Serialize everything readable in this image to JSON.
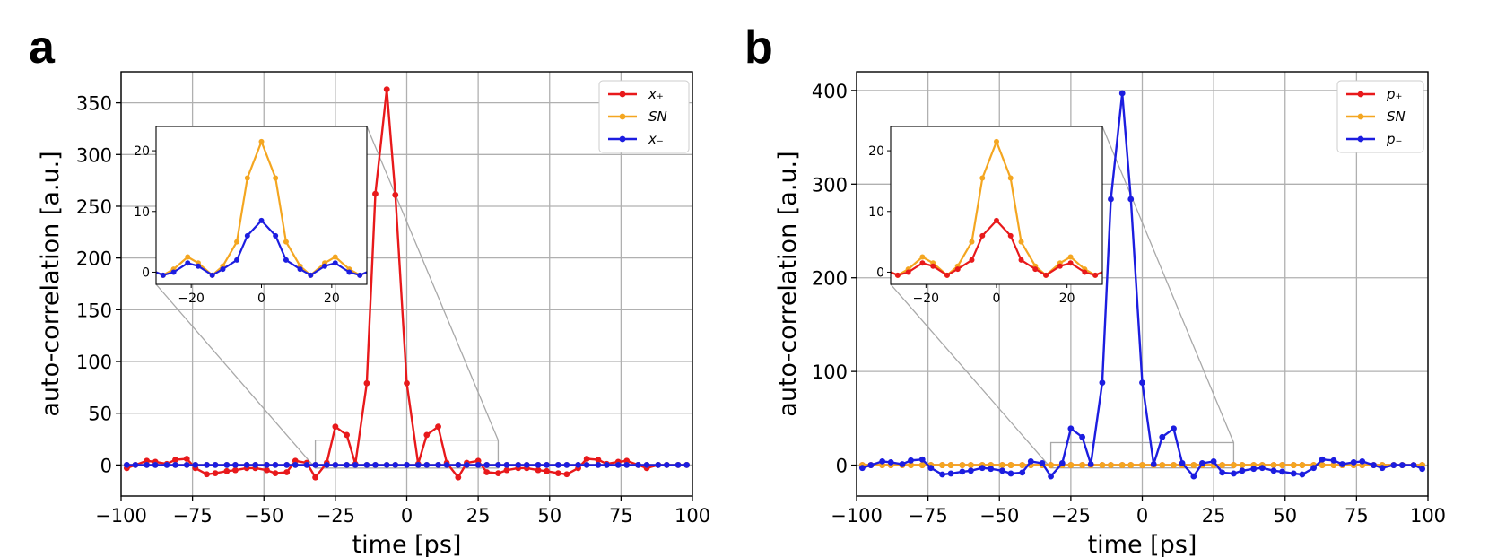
{
  "chart_data": [
    {
      "type": "line",
      "panel_label": "a",
      "xlabel": "time [ps]",
      "ylabel": "auto-correlation [a.u.]",
      "xlim": [
        -100,
        100
      ],
      "ylim": [
        -30,
        380
      ],
      "xticks": [
        -100,
        -75,
        -50,
        -25,
        0,
        25,
        50,
        75,
        100
      ],
      "xtick_labels": [
        "−100",
        "−75",
        "−50",
        "−25",
        "0",
        "25",
        "50",
        "75",
        "100"
      ],
      "yticks": [
        0,
        50,
        100,
        150,
        200,
        250,
        300,
        350
      ],
      "ytick_labels": [
        "0",
        "50",
        "100",
        "150",
        "200",
        "250",
        "300",
        "350"
      ],
      "grid": true,
      "legend_position": "top-right",
      "x": [
        -98,
        -95,
        -91,
        -88,
        -84,
        -81,
        -77,
        -74,
        -70,
        -67,
        -63,
        -60,
        -56,
        -53,
        -49,
        -46,
        -42,
        -39,
        -35,
        -32,
        -28,
        -25,
        -21,
        -18,
        -14,
        -11,
        -7,
        -4,
        0,
        4,
        7,
        11,
        14,
        18,
        21,
        25,
        28,
        32,
        35,
        39,
        42,
        46,
        49,
        53,
        56,
        60,
        63,
        67,
        70,
        74,
        77,
        81,
        84,
        88,
        91,
        95,
        98
      ],
      "series": [
        {
          "name": "x₊",
          "color": "#e8191b",
          "values": [
            -3,
            0,
            4,
            3,
            1,
            5,
            6,
            -3,
            -9,
            -8,
            -6,
            -5,
            -3,
            -3,
            -5,
            -8,
            -7,
            4,
            2,
            -12,
            2,
            37,
            29,
            1,
            79,
            262,
            363,
            261,
            79,
            1,
            29,
            37,
            2,
            -12,
            2,
            4,
            -7,
            -8,
            -5,
            -3,
            -3,
            -5,
            -6,
            -8,
            -9,
            -3,
            6,
            5,
            1,
            3,
            4,
            0,
            -3,
            0,
            0,
            0,
            0
          ]
        },
        {
          "name": "SN",
          "color": "#f4a620",
          "values": [
            0,
            0,
            0,
            0,
            0,
            0,
            0,
            0,
            0,
            0,
            0,
            0,
            0,
            0,
            0,
            0,
            0,
            0,
            0,
            0,
            0,
            0,
            0,
            0,
            0,
            0,
            0,
            0,
            0,
            0,
            0,
            0,
            0,
            0,
            0,
            0,
            0,
            0,
            0,
            0,
            0,
            0,
            0,
            0,
            0,
            0,
            0,
            0,
            0,
            0,
            0,
            0,
            0,
            0,
            0,
            0,
            0
          ]
        },
        {
          "name": "x₋",
          "color": "#1c1de0",
          "values": [
            0,
            0,
            0,
            0,
            0,
            0,
            0,
            0,
            0,
            0,
            0,
            0,
            0,
            0,
            0,
            0,
            0,
            0,
            0,
            0,
            0,
            0,
            0,
            0,
            0,
            0,
            0,
            0,
            0,
            0,
            0,
            0,
            0,
            0,
            0,
            0,
            0,
            0,
            0,
            0,
            0,
            0,
            0,
            0,
            0,
            0,
            0,
            0,
            0,
            0,
            0,
            0,
            0,
            0,
            0,
            0,
            0
          ]
        }
      ],
      "inset": {
        "xlim": [
          -30,
          30
        ],
        "ylim": [
          -2,
          24
        ],
        "xticks": [
          -20,
          0,
          20
        ],
        "xtick_labels": [
          "−20",
          "0",
          "20"
        ],
        "yticks": [
          0,
          10,
          20
        ],
        "ytick_labels": [
          "0",
          "10",
          "20"
        ],
        "x": [
          -32,
          -28,
          -25,
          -21,
          -18,
          -14,
          -11,
          -7,
          -4,
          0,
          4,
          7,
          11,
          14,
          18,
          21,
          25,
          28,
          32
        ],
        "series": [
          {
            "name": "SN",
            "color": "#f4a620",
            "values": [
              0.5,
              -0.5,
              0.5,
              2.5,
              1.5,
              -0.5,
              1,
              5,
              15.5,
              21.5,
              15.5,
              5,
              1,
              -0.5,
              1.5,
              2.5,
              0.5,
              -0.5,
              0.5
            ]
          },
          {
            "name": "x₋",
            "color": "#1c1de0",
            "values": [
              0.5,
              -0.5,
              0,
              1.5,
              1,
              -0.5,
              0.5,
              2,
              6,
              8.5,
              6,
              2,
              0.5,
              -0.5,
              1,
              1.5,
              0,
              -0.5,
              0.5
            ]
          }
        ]
      }
    },
    {
      "type": "line",
      "panel_label": "b",
      "xlabel": "time [ps]",
      "ylabel": "auto-correlation [a.u.]",
      "xlim": [
        -100,
        100
      ],
      "ylim": [
        -33,
        420
      ],
      "xticks": [
        -100,
        -75,
        -50,
        -25,
        0,
        25,
        50,
        75,
        100
      ],
      "xtick_labels": [
        "−100",
        "−75",
        "−50",
        "−25",
        "0",
        "25",
        "50",
        "75",
        "100"
      ],
      "yticks": [
        0,
        100,
        200,
        300,
        400
      ],
      "ytick_labels": [
        "0",
        "100",
        "200",
        "300",
        "400"
      ],
      "grid": true,
      "legend_position": "top-right",
      "x": [
        -98,
        -95,
        -91,
        -88,
        -84,
        -81,
        -77,
        -74,
        -70,
        -67,
        -63,
        -60,
        -56,
        -53,
        -49,
        -46,
        -42,
        -39,
        -35,
        -32,
        -28,
        -25,
        -21,
        -18,
        -14,
        -11,
        -7,
        -4,
        0,
        4,
        7,
        11,
        14,
        18,
        21,
        25,
        28,
        32,
        35,
        39,
        42,
        46,
        49,
        53,
        56,
        60,
        63,
        67,
        70,
        74,
        77,
        81,
        84,
        88,
        91,
        95,
        98
      ],
      "series": [
        {
          "name": "p₊",
          "color": "#e8191b",
          "values": [
            0,
            0,
            0,
            0,
            0,
            0,
            0,
            0,
            0,
            0,
            0,
            0,
            0,
            0,
            0,
            0,
            0,
            0,
            0,
            0,
            0,
            0,
            0,
            0,
            0,
            0,
            0,
            0,
            0,
            0,
            0,
            0,
            0,
            0,
            0,
            0,
            0,
            0,
            0,
            0,
            0,
            0,
            0,
            0,
            0,
            0,
            0,
            0,
            0,
            0,
            0,
            0,
            0,
            0,
            0,
            0,
            0
          ]
        },
        {
          "name": "SN",
          "color": "#f4a620",
          "values": [
            0,
            0,
            0,
            0,
            0,
            0,
            0,
            0,
            0,
            0,
            0,
            0,
            0,
            0,
            0,
            0,
            0,
            0,
            0,
            0,
            0,
            0,
            0,
            0,
            0,
            0,
            0,
            0,
            0,
            0,
            0,
            0,
            0,
            0,
            0,
            0,
            0,
            0,
            0,
            0,
            0,
            0,
            0,
            0,
            0,
            0,
            0,
            0,
            0,
            0,
            0,
            0,
            0,
            0,
            0,
            0,
            0
          ]
        },
        {
          "name": "p₋",
          "color": "#1c1de0",
          "values": [
            -3,
            0,
            4,
            3,
            1,
            5,
            6,
            -3,
            -10,
            -9,
            -7,
            -6,
            -3,
            -4,
            -6,
            -9,
            -8,
            4,
            2,
            -12,
            2,
            39,
            30,
            1,
            88,
            284,
            397,
            284,
            88,
            1,
            30,
            39,
            2,
            -12,
            2,
            4,
            -8,
            -9,
            -6,
            -4,
            -3,
            -6,
            -7,
            -9,
            -10,
            -3,
            6,
            5,
            1,
            3,
            4,
            0,
            -3,
            0,
            0,
            0,
            -4
          ]
        }
      ],
      "inset": {
        "xlim": [
          -30,
          30
        ],
        "ylim": [
          -2,
          24
        ],
        "xticks": [
          -20,
          0,
          20
        ],
        "xtick_labels": [
          "−20",
          "0",
          "20"
        ],
        "yticks": [
          0,
          10,
          20
        ],
        "ytick_labels": [
          "0",
          "10",
          "20"
        ],
        "x": [
          -32,
          -28,
          -25,
          -21,
          -18,
          -14,
          -11,
          -7,
          -4,
          0,
          4,
          7,
          11,
          14,
          18,
          21,
          25,
          28,
          32
        ],
        "series": [
          {
            "name": "SN",
            "color": "#f4a620",
            "values": [
              0.5,
              -0.5,
              0.5,
              2.5,
              1.5,
              -0.5,
              1,
              5,
              15.5,
              21.5,
              15.5,
              5,
              1,
              -0.5,
              1.5,
              2.5,
              0.5,
              -0.5,
              0.5
            ]
          },
          {
            "name": "p₊",
            "color": "#e8191b",
            "values": [
              0.5,
              -0.5,
              0,
              1.5,
              1,
              -0.5,
              0.5,
              2,
              6,
              8.5,
              6,
              2,
              0.5,
              -0.5,
              1,
              1.5,
              0,
              -0.5,
              0.5
            ]
          }
        ]
      }
    }
  ]
}
